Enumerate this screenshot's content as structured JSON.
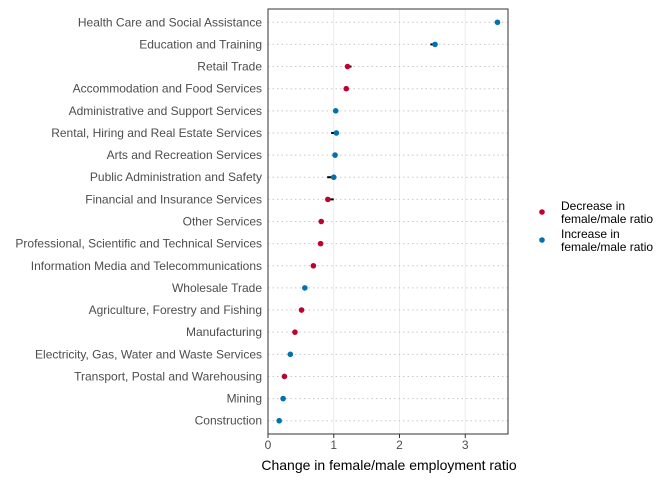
{
  "chart_data": {
    "type": "dot",
    "title": "",
    "xlabel": "Change in female/male employment ratio",
    "ylabel": "",
    "xlim": [
      0,
      3.65
    ],
    "xticks": [
      0,
      1,
      2,
      3
    ],
    "grid": true,
    "legend_position": "right",
    "colors": {
      "decrease": "#c0002e",
      "increase": "#0072b2",
      "segment": "#000000"
    },
    "legend": [
      {
        "key": "decrease",
        "line1": "Decrease in",
        "line2": "female/male ratio"
      },
      {
        "key": "increase",
        "line1": "Increase in",
        "line2": "female/male ratio"
      }
    ],
    "series": [
      {
        "category": "Health Care and Social Assistance",
        "start": 3.48,
        "end": 3.49,
        "direction": "increase"
      },
      {
        "category": "Education and Training",
        "start": 2.47,
        "end": 2.54,
        "direction": "increase"
      },
      {
        "category": "Retail Trade",
        "start": 1.27,
        "end": 1.21,
        "direction": "decrease"
      },
      {
        "category": "Accommodation and Food Services",
        "start": 1.2,
        "end": 1.19,
        "direction": "decrease"
      },
      {
        "category": "Administrative and Support Services",
        "start": 1.02,
        "end": 1.03,
        "direction": "increase"
      },
      {
        "category": "Rental, Hiring and Real Estate Services",
        "start": 0.96,
        "end": 1.04,
        "direction": "increase"
      },
      {
        "category": "Arts and Recreation Services",
        "start": 1.0,
        "end": 1.02,
        "direction": "increase"
      },
      {
        "category": "Public Administration and Safety",
        "start": 0.9,
        "end": 1.0,
        "direction": "increase"
      },
      {
        "category": "Financial and Insurance Services",
        "start": 1.0,
        "end": 0.91,
        "direction": "decrease"
      },
      {
        "category": "Other Services",
        "start": 0.82,
        "end": 0.81,
        "direction": "decrease"
      },
      {
        "category": "Professional, Scientific and Technical Services",
        "start": 0.81,
        "end": 0.8,
        "direction": "decrease"
      },
      {
        "category": "Information Media and Telecommunications",
        "start": 0.7,
        "end": 0.69,
        "direction": "decrease"
      },
      {
        "category": "Wholesale Trade",
        "start": 0.54,
        "end": 0.56,
        "direction": "increase"
      },
      {
        "category": "Agriculture, Forestry and Fishing",
        "start": 0.52,
        "end": 0.51,
        "direction": "decrease"
      },
      {
        "category": "Manufacturing",
        "start": 0.42,
        "end": 0.41,
        "direction": "decrease"
      },
      {
        "category": "Electricity, Gas, Water and Waste Services",
        "start": 0.32,
        "end": 0.34,
        "direction": "increase"
      },
      {
        "category": "Transport, Postal and Warehousing",
        "start": 0.26,
        "end": 0.25,
        "direction": "decrease"
      },
      {
        "category": "Mining",
        "start": 0.22,
        "end": 0.23,
        "direction": "increase"
      },
      {
        "category": "Construction",
        "start": 0.16,
        "end": 0.17,
        "direction": "increase"
      }
    ]
  }
}
